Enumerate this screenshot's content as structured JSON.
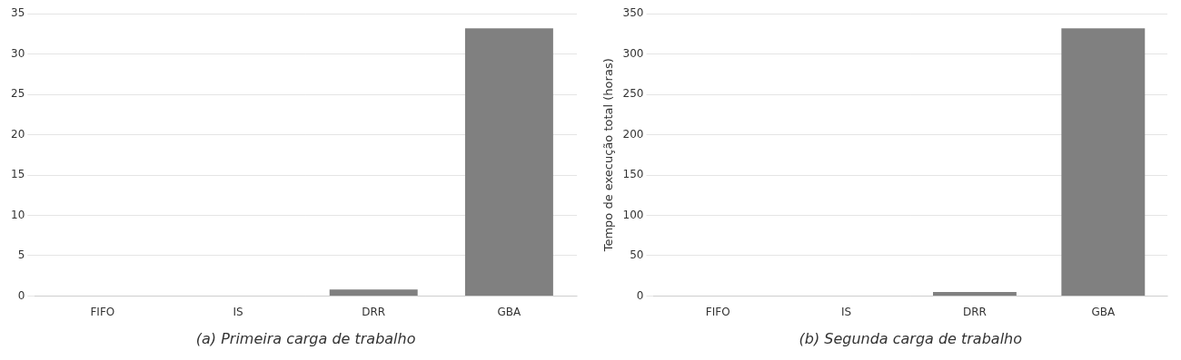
{
  "chart_data": [
    {
      "type": "bar",
      "xlabel": "(a) Primeira carga de trabalho",
      "categories": [
        "FIFO",
        "IS",
        "DRR",
        "GBA"
      ],
      "values": [
        0,
        0,
        0.8,
        33.2
      ],
      "color": "#808080",
      "ylim": [
        0,
        35
      ],
      "yticks": [
        0,
        5,
        10,
        15,
        20,
        25,
        30,
        35
      ],
      "grid": true
    },
    {
      "type": "bar",
      "xlabel": "(b) Segunda carga de trabalho",
      "ylabel": "Tempo de execução total (horas)",
      "categories": [
        "FIFO",
        "IS",
        "DRR",
        "GBA"
      ],
      "values": [
        0,
        0,
        5,
        332
      ],
      "color": "#808080",
      "ylim": [
        0,
        350
      ],
      "yticks": [
        0,
        50,
        100,
        150,
        200,
        250,
        300,
        350
      ],
      "grid": true
    }
  ]
}
